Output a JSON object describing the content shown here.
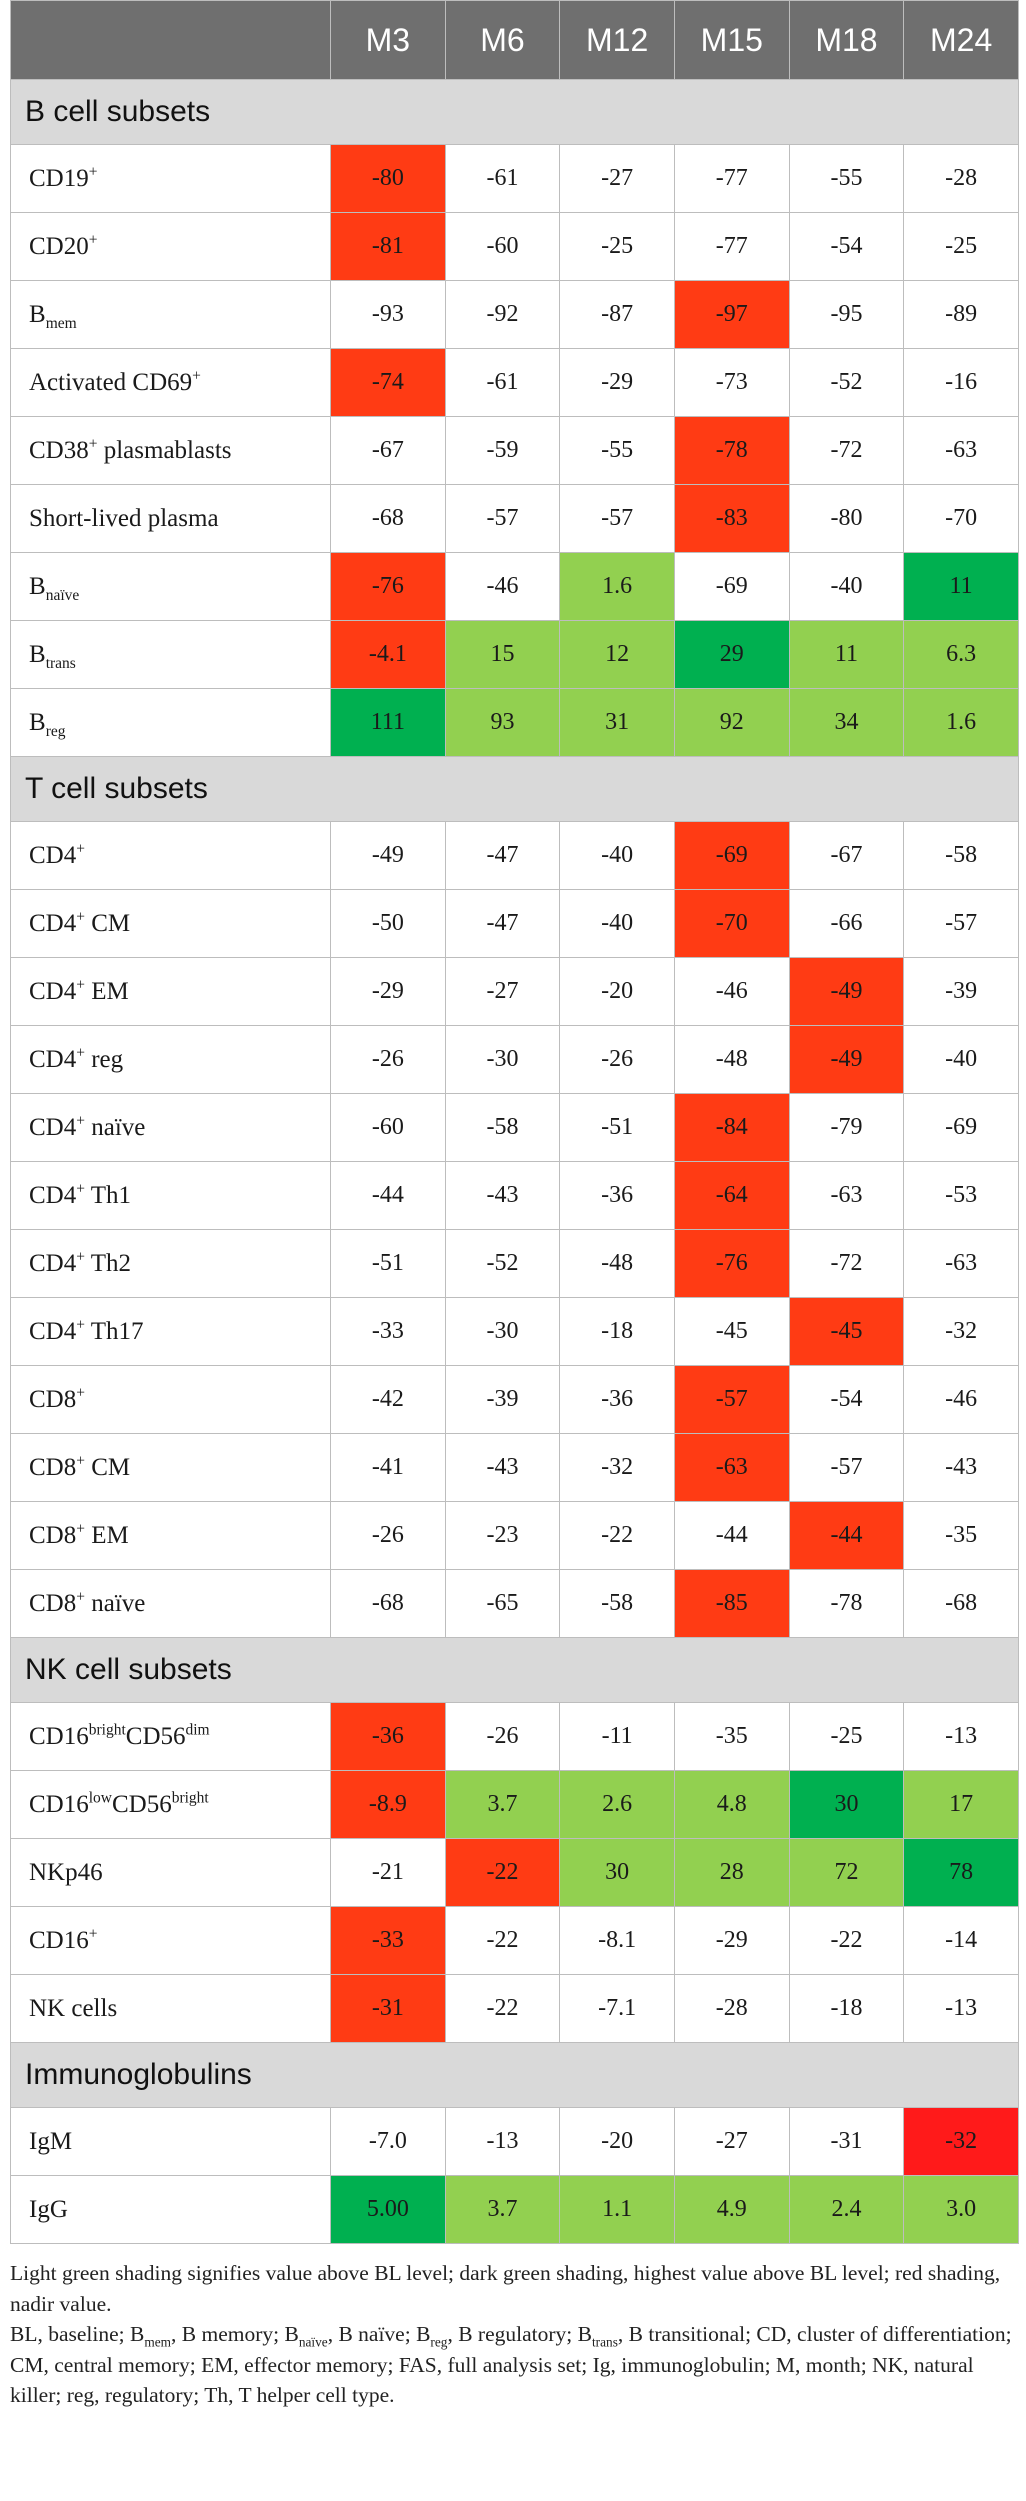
{
  "header": {
    "columns": [
      "M3",
      "M6",
      "M12",
      "M15",
      "M18",
      "M24"
    ]
  },
  "colors": {
    "red": "#ff3b14",
    "light_green": "#92d050",
    "dark_green": "#00b050",
    "bright_red": "#ff1a1a"
  },
  "sections": [
    {
      "title": "B cell subsets",
      "rows": [
        {
          "label": [
            [
              "CD19",
              ""
            ],
            [
              "+",
              "sup"
            ]
          ],
          "values": [
            "-80",
            "-61",
            "-27",
            "-77",
            "-55",
            "-28"
          ],
          "shade": [
            "red",
            "",
            "",
            "",
            "",
            ""
          ]
        },
        {
          "label": [
            [
              "CD20",
              ""
            ],
            [
              "+",
              "sup"
            ]
          ],
          "values": [
            "-81",
            "-60",
            "-25",
            "-77",
            "-54",
            "-25"
          ],
          "shade": [
            "red",
            "",
            "",
            "",
            "",
            ""
          ]
        },
        {
          "label": [
            [
              "B",
              ""
            ],
            [
              "mem",
              "sub"
            ]
          ],
          "values": [
            "-93",
            "-92",
            "-87",
            "-97",
            "-95",
            "-89"
          ],
          "shade": [
            "",
            "",
            "",
            "red",
            "",
            ""
          ]
        },
        {
          "label": [
            [
              "Activated CD69",
              ""
            ],
            [
              "+",
              "sup"
            ]
          ],
          "values": [
            "-74",
            "-61",
            "-29",
            "-73",
            "-52",
            "-16"
          ],
          "shade": [
            "red",
            "",
            "",
            "",
            "",
            ""
          ]
        },
        {
          "label": [
            [
              "CD38",
              ""
            ],
            [
              "+",
              "sup"
            ],
            [
              " plasmablasts",
              ""
            ]
          ],
          "values": [
            "-67",
            "-59",
            "-55",
            "-78",
            "-72",
            "-63"
          ],
          "shade": [
            "",
            "",
            "",
            "red",
            "",
            ""
          ]
        },
        {
          "label": [
            [
              "Short-lived plasma",
              ""
            ]
          ],
          "values": [
            "-68",
            "-57",
            "-57",
            "-83",
            "-80",
            "-70"
          ],
          "shade": [
            "",
            "",
            "",
            "red",
            "",
            ""
          ]
        },
        {
          "label": [
            [
              "B",
              ""
            ],
            [
              "naïve",
              "sub"
            ]
          ],
          "values": [
            "-76",
            "-46",
            "1.6",
            "-69",
            "-40",
            "11"
          ],
          "shade": [
            "red",
            "",
            "lg",
            "",
            "",
            "dg"
          ]
        },
        {
          "label": [
            [
              "B",
              ""
            ],
            [
              "trans",
              "sub"
            ]
          ],
          "values": [
            "-4.1",
            "15",
            "12",
            "29",
            "11",
            "6.3"
          ],
          "shade": [
            "red",
            "lg",
            "lg",
            "dg",
            "lg",
            "lg"
          ]
        },
        {
          "label": [
            [
              "B",
              ""
            ],
            [
              "reg",
              "sub"
            ]
          ],
          "values": [
            "111",
            "93",
            "31",
            "92",
            "34",
            "1.6"
          ],
          "shade": [
            "dg",
            "lg",
            "lg",
            "lg",
            "lg",
            "lg"
          ]
        }
      ]
    },
    {
      "title": "T cell subsets",
      "rows": [
        {
          "label": [
            [
              "CD4",
              ""
            ],
            [
              "+",
              "sup"
            ]
          ],
          "values": [
            "-49",
            "-47",
            "-40",
            "-69",
            "-67",
            "-58"
          ],
          "shade": [
            "",
            "",
            "",
            "red",
            "",
            ""
          ]
        },
        {
          "label": [
            [
              "CD4",
              ""
            ],
            [
              "+",
              "sup"
            ],
            [
              " CM",
              ""
            ]
          ],
          "values": [
            "-50",
            "-47",
            "-40",
            "-70",
            "-66",
            "-57"
          ],
          "shade": [
            "",
            "",
            "",
            "red",
            "",
            ""
          ]
        },
        {
          "label": [
            [
              "CD4",
              ""
            ],
            [
              "+",
              "sup"
            ],
            [
              " EM",
              ""
            ]
          ],
          "values": [
            "-29",
            "-27",
            "-20",
            "-46",
            "-49",
            "-39"
          ],
          "shade": [
            "",
            "",
            "",
            "",
            "red",
            ""
          ]
        },
        {
          "label": [
            [
              "CD4",
              ""
            ],
            [
              "+",
              "sup"
            ],
            [
              " reg",
              ""
            ]
          ],
          "values": [
            "-26",
            "-30",
            "-26",
            "-48",
            "-49",
            "-40"
          ],
          "shade": [
            "",
            "",
            "",
            "",
            "red",
            ""
          ]
        },
        {
          "label": [
            [
              "CD4",
              ""
            ],
            [
              "+",
              "sup"
            ],
            [
              " naïve",
              ""
            ]
          ],
          "values": [
            "-60",
            "-58",
            "-51",
            "-84",
            "-79",
            "-69"
          ],
          "shade": [
            "",
            "",
            "",
            "red",
            "",
            ""
          ]
        },
        {
          "label": [
            [
              "CD4",
              ""
            ],
            [
              "+",
              "sup"
            ],
            [
              " Th1",
              ""
            ]
          ],
          "values": [
            "-44",
            "-43",
            "-36",
            "-64",
            "-63",
            "-53"
          ],
          "shade": [
            "",
            "",
            "",
            "red",
            "",
            ""
          ]
        },
        {
          "label": [
            [
              "CD4",
              ""
            ],
            [
              "+",
              "sup"
            ],
            [
              " Th2",
              ""
            ]
          ],
          "values": [
            "-51",
            "-52",
            "-48",
            "-76",
            "-72",
            "-63"
          ],
          "shade": [
            "",
            "",
            "",
            "red",
            "",
            ""
          ]
        },
        {
          "label": [
            [
              "CD4",
              ""
            ],
            [
              "+",
              "sup"
            ],
            [
              " Th17",
              ""
            ]
          ],
          "values": [
            "-33",
            "-30",
            "-18",
            "-45",
            "-45",
            "-32"
          ],
          "shade": [
            "",
            "",
            "",
            "",
            "red",
            ""
          ]
        },
        {
          "label": [
            [
              "CD8",
              ""
            ],
            [
              "+",
              "sup"
            ]
          ],
          "values": [
            "-42",
            "-39",
            "-36",
            "-57",
            "-54",
            "-46"
          ],
          "shade": [
            "",
            "",
            "",
            "red",
            "",
            ""
          ]
        },
        {
          "label": [
            [
              "CD8",
              ""
            ],
            [
              "+",
              "sup"
            ],
            [
              " CM",
              ""
            ]
          ],
          "values": [
            "-41",
            "-43",
            "-32",
            "-63",
            "-57",
            "-43"
          ],
          "shade": [
            "",
            "",
            "",
            "red",
            "",
            ""
          ]
        },
        {
          "label": [
            [
              "CD8",
              ""
            ],
            [
              "+",
              "sup"
            ],
            [
              " EM",
              ""
            ]
          ],
          "values": [
            "-26",
            "-23",
            "-22",
            "-44",
            "-44",
            "-35"
          ],
          "shade": [
            "",
            "",
            "",
            "",
            "red",
            ""
          ]
        },
        {
          "label": [
            [
              "CD8",
              ""
            ],
            [
              "+",
              "sup"
            ],
            [
              " naïve",
              ""
            ]
          ],
          "values": [
            "-68",
            "-65",
            "-58",
            "-85",
            "-78",
            "-68"
          ],
          "shade": [
            "",
            "",
            "",
            "red",
            "",
            ""
          ]
        }
      ]
    },
    {
      "title": "NK cell subsets",
      "rows": [
        {
          "label": [
            [
              "CD16",
              ""
            ],
            [
              "bright",
              "sup"
            ],
            [
              "CD56",
              ""
            ],
            [
              "dim",
              "sup"
            ]
          ],
          "values": [
            "-36",
            "-26",
            "-11",
            "-35",
            "-25",
            "-13"
          ],
          "shade": [
            "red",
            "",
            "",
            "",
            "",
            ""
          ]
        },
        {
          "label": [
            [
              "CD16",
              ""
            ],
            [
              "low",
              "sup"
            ],
            [
              "CD56",
              ""
            ],
            [
              "bright",
              "sup"
            ]
          ],
          "values": [
            "-8.9",
            "3.7",
            "2.6",
            "4.8",
            "30",
            "17"
          ],
          "shade": [
            "red",
            "lg",
            "lg",
            "lg",
            "dg",
            "lg"
          ]
        },
        {
          "label": [
            [
              "NKp46",
              ""
            ]
          ],
          "values": [
            "-21",
            "-22",
            "30",
            "28",
            "72",
            "78"
          ],
          "shade": [
            "",
            "red",
            "lg",
            "lg",
            "lg",
            "dg"
          ]
        },
        {
          "label": [
            [
              "CD16",
              ""
            ],
            [
              "+",
              "sup"
            ]
          ],
          "values": [
            "-33",
            "-22",
            "-8.1",
            "-29",
            "-22",
            "-14"
          ],
          "shade": [
            "red",
            "",
            "",
            "",
            "",
            ""
          ]
        },
        {
          "label": [
            [
              "NK cells",
              ""
            ]
          ],
          "values": [
            "-31",
            "-22",
            "-7.1",
            "-28",
            "-18",
            "-13"
          ],
          "shade": [
            "red",
            "",
            "",
            "",
            "",
            ""
          ]
        }
      ]
    },
    {
      "title": "Immunoglobulins",
      "rows": [
        {
          "label": [
            [
              "IgM",
              ""
            ]
          ],
          "values": [
            "-7.0",
            "-13",
            "-20",
            "-27",
            "-31",
            "-32"
          ],
          "shade": [
            "",
            "",
            "",
            "",
            "",
            "bright"
          ]
        },
        {
          "label": [
            [
              "IgG",
              ""
            ]
          ],
          "values": [
            "5.00",
            "3.7",
            "1.1",
            "4.9",
            "2.4",
            "3.0"
          ],
          "shade": [
            "dg",
            "lg",
            "lg",
            "lg",
            "lg",
            "lg"
          ]
        }
      ]
    }
  ],
  "footnotes": {
    "note1": "Light green shading signifies value above BL level; dark green shading, highest value above BL level; red shading, nadir value.",
    "note2": [
      [
        "BL, baseline; B",
        ""
      ],
      [
        "mem",
        "sub"
      ],
      [
        ", B memory; B",
        ""
      ],
      [
        "naïve",
        "sub"
      ],
      [
        ", B naïve; B",
        ""
      ],
      [
        "reg",
        "sub"
      ],
      [
        ", B regulatory; B",
        ""
      ],
      [
        "trans",
        "sub"
      ],
      [
        ", B transitional; CD, cluster of differentiation; CM, central memory; EM, effector memory; FAS, full analysis set; Ig, immunoglobulin; M, month; NK, natural killer; reg, regulatory; Th, T helper cell type.",
        ""
      ]
    ]
  }
}
